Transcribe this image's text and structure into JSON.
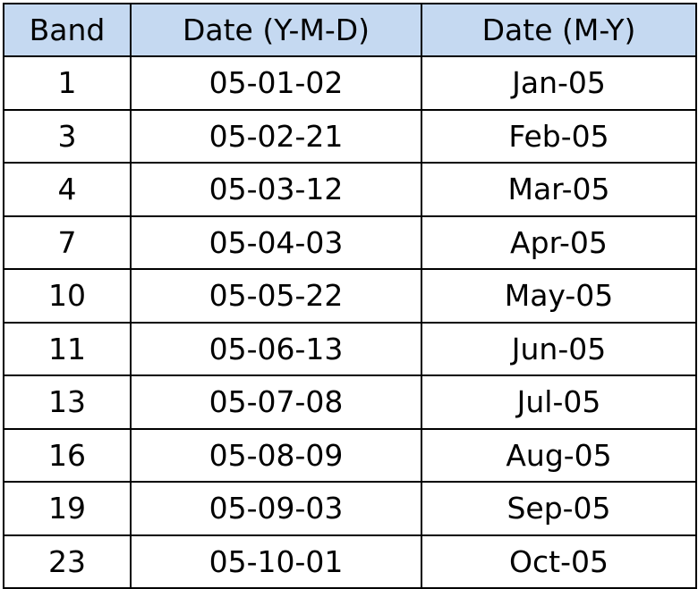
{
  "table": {
    "headers": [
      "Band",
      "Date (Y-M-D)",
      "Date (M-Y)"
    ],
    "rows": [
      [
        "1",
        "05-01-02",
        "Jan-05"
      ],
      [
        "3",
        "05-02-21",
        "Feb-05"
      ],
      [
        "4",
        "05-03-12",
        "Mar-05"
      ],
      [
        "7",
        "05-04-03",
        "Apr-05"
      ],
      [
        "10",
        "05-05-22",
        "May-05"
      ],
      [
        "11",
        "05-06-13",
        "Jun-05"
      ],
      [
        "13",
        "05-07-08",
        "Jul-05"
      ],
      [
        "16",
        "05-08-09",
        "Aug-05"
      ],
      [
        "19",
        "05-09-03",
        "Sep-05"
      ],
      [
        "23",
        "05-10-01",
        "Oct-05"
      ]
    ]
  },
  "colors": {
    "header_background": "#c5d9f1",
    "border": "#000000",
    "text": "#000000"
  }
}
